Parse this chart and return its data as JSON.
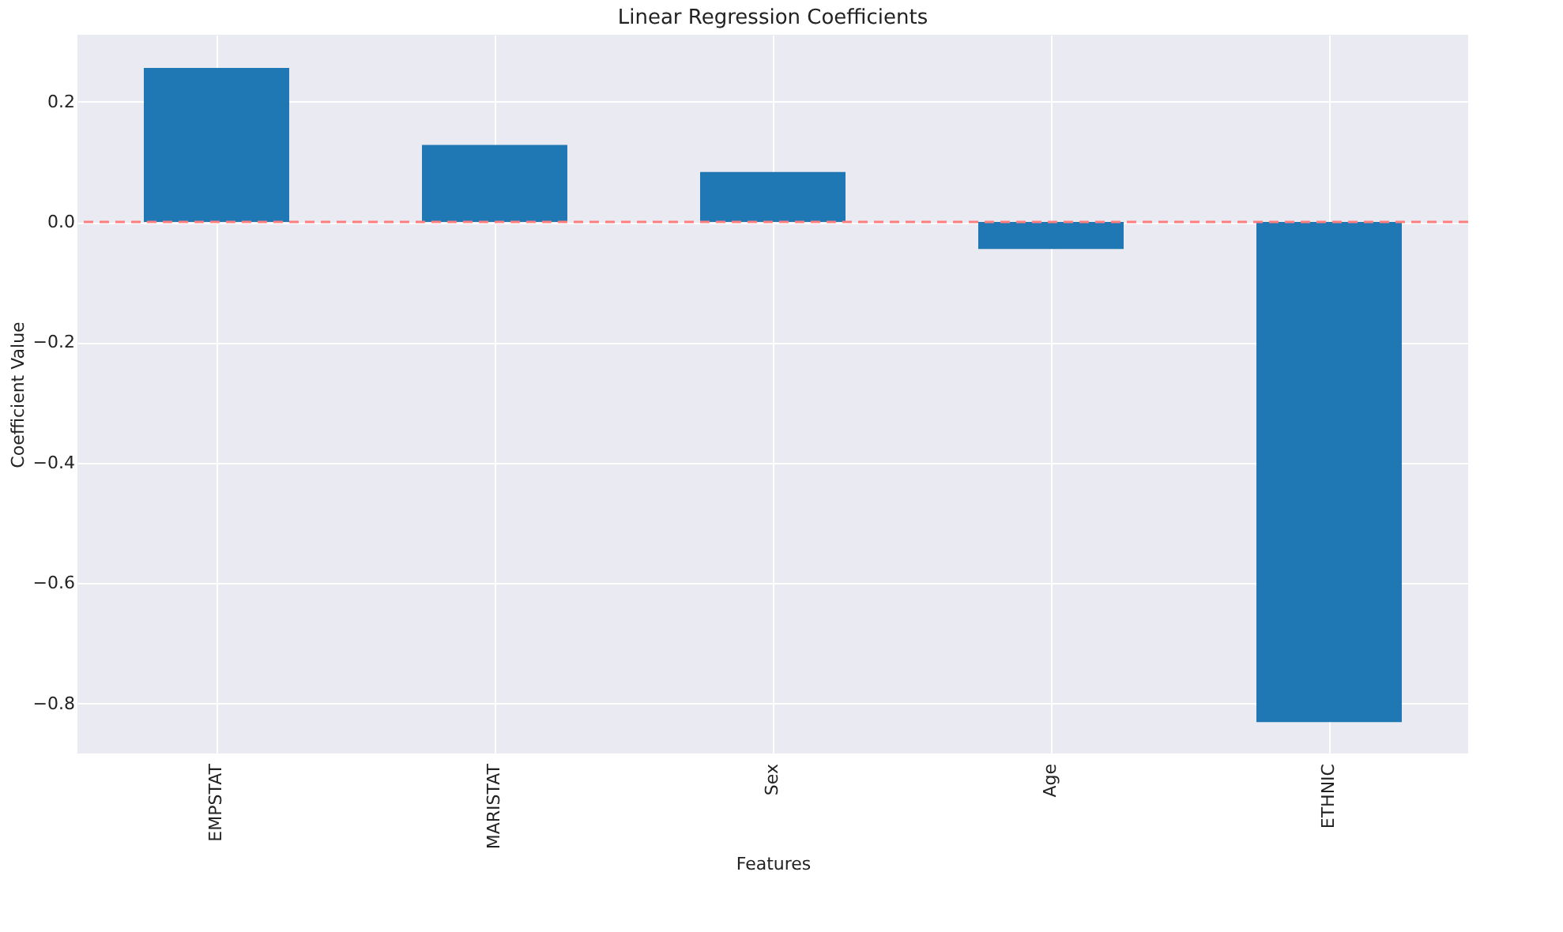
{
  "chart_data": {
    "type": "bar",
    "title": "Linear Regression Coefficients",
    "xlabel": "Features",
    "ylabel": "Coefficient Value",
    "categories": [
      "EMPSTAT",
      "MARISTAT",
      "Sex",
      "Age",
      "ETHNIC"
    ],
    "values": [
      0.256,
      0.128,
      0.083,
      -0.045,
      -0.831
    ],
    "color": "#1f77b4",
    "ylim": [
      -0.883,
      0.311
    ],
    "yticks": [
      {
        "value": -0.8,
        "label": "−0.8"
      },
      {
        "value": -0.6,
        "label": "−0.6"
      },
      {
        "value": -0.4,
        "label": "−0.4"
      },
      {
        "value": -0.2,
        "label": "−0.2"
      },
      {
        "value": 0,
        "label": "0.0"
      },
      {
        "value": 0.2,
        "label": "0.2"
      }
    ],
    "grid": true,
    "ref_lines": [
      {
        "axis": "y",
        "value": 0,
        "color": "#ff7f7f",
        "line_style": "dashed"
      }
    ]
  }
}
